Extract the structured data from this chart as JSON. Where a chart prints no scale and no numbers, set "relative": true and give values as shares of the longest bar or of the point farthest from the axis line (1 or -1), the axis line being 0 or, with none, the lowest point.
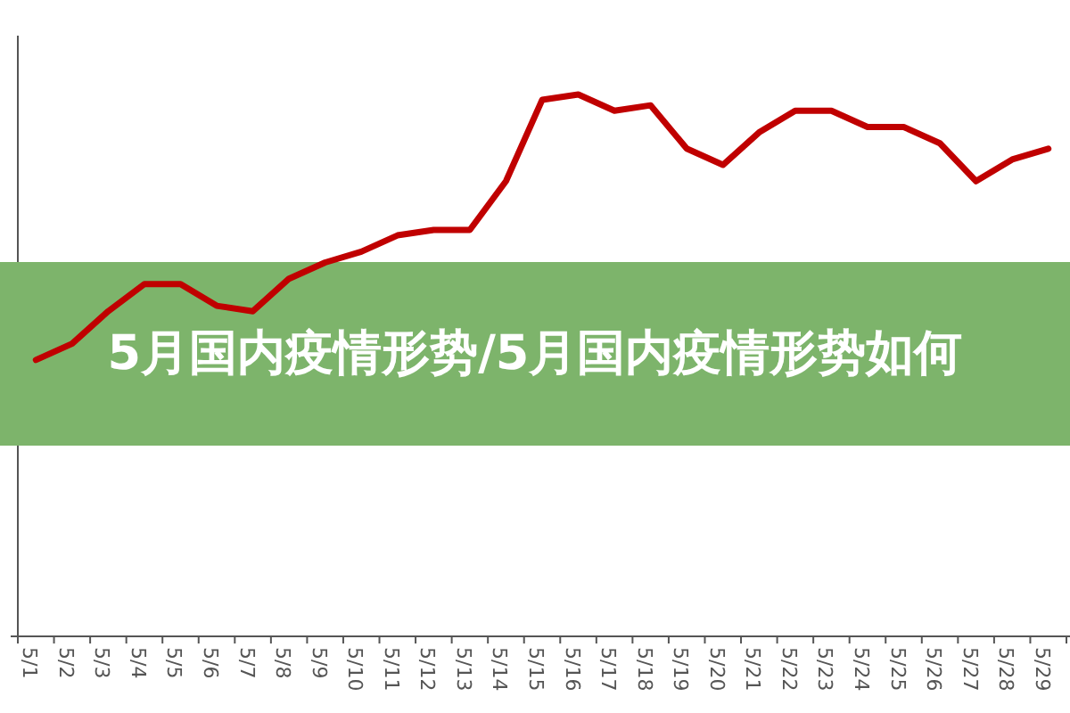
{
  "chart_data": {
    "type": "line",
    "title": "5月国内疫情形势/5月国内疫情形势如何",
    "relative": true,
    "categories": [
      "5/1",
      "5/2",
      "5/3",
      "5/4",
      "5/5",
      "5/6",
      "5/7",
      "5/8",
      "5/9",
      "5/10",
      "5/11",
      "5/12",
      "5/13",
      "5/14",
      "5/15",
      "5/16",
      "5/17",
      "5/18",
      "5/19",
      "5/20",
      "5/21",
      "5/22",
      "5/23",
      "5/24",
      "5/25",
      "5/26",
      "5/27",
      "5/28",
      "5/29"
    ],
    "series": [
      {
        "color": "#c00000",
        "values": [
          0.51,
          0.54,
          0.6,
          0.65,
          0.65,
          0.61,
          0.6,
          0.66,
          0.69,
          0.71,
          0.74,
          0.75,
          0.75,
          0.84,
          0.99,
          1,
          0.97,
          0.98,
          0.9,
          0.87,
          0.93,
          0.97,
          0.97,
          0.94,
          0.94,
          0.91,
          0.84,
          0.88,
          0.9
        ]
      }
    ]
  }
}
